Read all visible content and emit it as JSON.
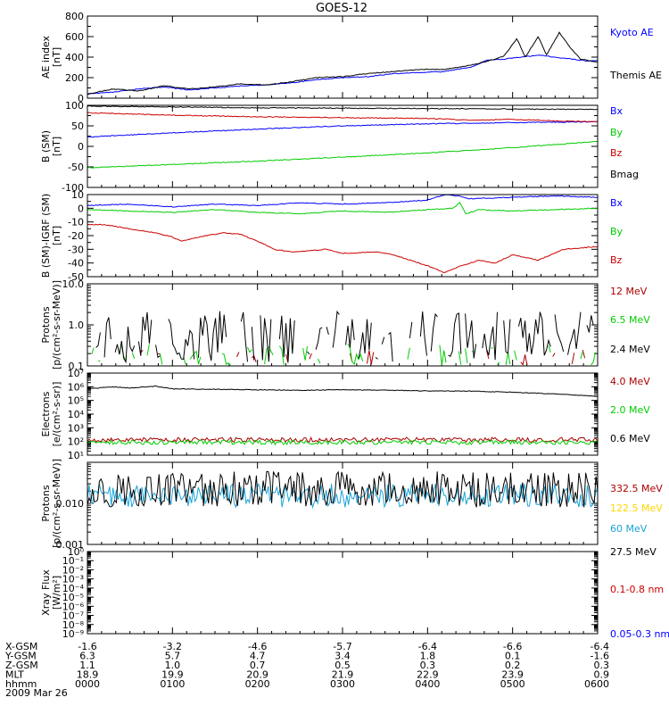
{
  "title": "GOES-12",
  "panels": [
    {
      "id": "ae",
      "ylabel": [
        "AE index",
        "[nT]"
      ],
      "scale": "linear",
      "ylim": [
        0,
        800
      ],
      "ticks": [
        {
          "v": 0,
          "l": "0"
        },
        {
          "v": 200,
          "l": "200"
        },
        {
          "v": 400,
          "l": "400"
        },
        {
          "v": 600,
          "l": "600"
        },
        {
          "v": 800,
          "l": "800"
        }
      ],
      "minor": [
        100,
        300,
        500,
        700
      ],
      "legend": [
        {
          "text": "Kyoto AE",
          "color": "#0000ff"
        },
        {
          "text": "Themis AE",
          "color": "#000000"
        }
      ],
      "series": [
        {
          "name": "Kyoto AE",
          "color": "#0000ff",
          "x": [
            0,
            0.3,
            0.6,
            0.9,
            1.2,
            1.5,
            1.8,
            2.1,
            2.4,
            2.7,
            3.0,
            3.3,
            3.6,
            3.9,
            4.2,
            4.5,
            4.7,
            4.9,
            5.1,
            5.3,
            5.5,
            5.7,
            5.9,
            6.0
          ],
          "y": [
            40,
            60,
            90,
            110,
            80,
            100,
            120,
            130,
            150,
            180,
            200,
            210,
            240,
            250,
            260,
            300,
            370,
            380,
            400,
            420,
            400,
            380,
            360,
            370
          ]
        },
        {
          "name": "Themis AE",
          "color": "#000000",
          "x": [
            0,
            0.3,
            0.6,
            0.9,
            1.2,
            1.5,
            1.8,
            2.1,
            2.4,
            2.7,
            3.0,
            3.3,
            3.6,
            3.9,
            4.2,
            4.5,
            4.7,
            4.9,
            5.05,
            5.15,
            5.3,
            5.4,
            5.55,
            5.7,
            5.8,
            6.0
          ],
          "y": [
            40,
            90,
            70,
            120,
            90,
            110,
            140,
            130,
            160,
            200,
            210,
            240,
            260,
            280,
            280,
            320,
            360,
            410,
            580,
            400,
            600,
            420,
            640,
            470,
            380,
            350
          ]
        }
      ]
    },
    {
      "id": "b",
      "ylabel": [
        "B (SM)",
        "[nT]"
      ],
      "scale": "linear",
      "ylim": [
        -100,
        100
      ],
      "ticks": [
        {
          "v": -100,
          "l": "-100"
        },
        {
          "v": -50,
          "l": "-50"
        },
        {
          "v": 0,
          "l": "0"
        },
        {
          "v": 50,
          "l": "50"
        },
        {
          "v": 100,
          "l": "100"
        }
      ],
      "minor": [
        -75,
        -25,
        25,
        75
      ],
      "legend": [
        {
          "text": "Bx",
          "color": "#0000ff"
        },
        {
          "text": "By",
          "color": "#00cc00"
        },
        {
          "text": "Bz",
          "color": "#cc0000"
        },
        {
          "text": "Bmag",
          "color": "#000000"
        }
      ],
      "series": [
        {
          "name": "Bx",
          "color": "#0000ff",
          "x": [
            0,
            1,
            2,
            3,
            4,
            5,
            6
          ],
          "y": [
            23,
            33,
            42,
            50,
            55,
            58,
            60
          ]
        },
        {
          "name": "By",
          "color": "#00cc00",
          "x": [
            0,
            1,
            2,
            3,
            4,
            5,
            6
          ],
          "y": [
            -52,
            -44,
            -36,
            -26,
            -16,
            -3,
            12
          ]
        },
        {
          "name": "Bz",
          "color": "#cc0000",
          "x": [
            0,
            1,
            2,
            3,
            4,
            4.5,
            5,
            5.5,
            6
          ],
          "y": [
            82,
            76,
            72,
            70,
            68,
            64,
            66,
            62,
            60
          ]
        },
        {
          "name": "Bmag",
          "color": "#000000",
          "x": [
            0,
            1,
            2,
            3,
            4,
            5,
            6
          ],
          "y": [
            98,
            96,
            94,
            93,
            92,
            91,
            90
          ]
        }
      ]
    },
    {
      "id": "bd",
      "ylabel": [
        "B (SM)-IGRF (SM)",
        "[nT]"
      ],
      "scale": "linear",
      "ylim": [
        -50,
        10
      ],
      "ticks": [
        {
          "v": -50,
          "l": "-50"
        },
        {
          "v": -40,
          "l": "-40"
        },
        {
          "v": -30,
          "l": "-30"
        },
        {
          "v": -20,
          "l": "-20"
        },
        {
          "v": -10,
          "l": "-10"
        },
        {
          "v": 0,
          "l": "0"
        },
        {
          "v": 10,
          "l": "10"
        }
      ],
      "minor": [
        -45,
        -35,
        -25,
        -15,
        -5,
        5
      ],
      "legend": [
        {
          "text": "Bx",
          "color": "#0000ff"
        },
        {
          "text": "By",
          "color": "#00cc00"
        },
        {
          "text": "Bz",
          "color": "#cc0000"
        }
      ],
      "series": [
        {
          "name": "Bx",
          "color": "#0000ff",
          "x": [
            0,
            0.5,
            1,
            1.5,
            2,
            2.5,
            3,
            3.5,
            4,
            4.2,
            4.35,
            4.5,
            5,
            5.5,
            6
          ],
          "y": [
            2,
            3,
            1,
            3,
            2,
            4,
            3,
            4,
            6,
            10,
            9,
            7,
            8,
            9,
            8
          ]
        },
        {
          "name": "By",
          "color": "#00cc00",
          "x": [
            0,
            0.5,
            1,
            1.5,
            2,
            2.5,
            3,
            3.5,
            4,
            4.3,
            4.38,
            4.45,
            4.6,
            5,
            5.5,
            6
          ],
          "y": [
            -1,
            -2,
            -3,
            -1,
            -3,
            -4,
            -2,
            -3,
            -1,
            0,
            4,
            -4,
            -1,
            -2,
            -1,
            0
          ]
        },
        {
          "name": "Bz",
          "color": "#cc0000",
          "x": [
            0,
            0.2,
            0.5,
            0.8,
            1.0,
            1.1,
            1.4,
            1.6,
            1.8,
            2.0,
            2.2,
            2.4,
            2.8,
            3.0,
            3.4,
            3.6,
            3.8,
            4.0,
            4.2,
            4.4,
            4.6,
            4.8,
            5.0,
            5.3,
            5.6,
            6.0
          ],
          "y": [
            -12,
            -12,
            -15,
            -18,
            -21,
            -24,
            -20,
            -18,
            -19,
            -24,
            -30,
            -32,
            -30,
            -33,
            -32,
            -34,
            -38,
            -42,
            -47,
            -42,
            -38,
            -40,
            -34,
            -38,
            -30,
            -28
          ]
        }
      ]
    },
    {
      "id": "prot1",
      "ylabel": [
        "Protons",
        "[p/(cm²-s-sr-MeV)]"
      ],
      "scale": "log",
      "ylim": [
        0.1,
        10
      ],
      "ticks": [
        {
          "v": 0.1,
          "l": "0.1"
        },
        {
          "v": 1,
          "l": "1.0"
        },
        {
          "v": 10,
          "l": "10.0"
        }
      ],
      "legend": [
        {
          "text": "12 MeV",
          "color": "#aa0000"
        },
        {
          "text": "6.5 MeV",
          "color": "#00cc00"
        },
        {
          "text": "2.4 MeV",
          "color": "#000000"
        }
      ],
      "series": [
        {
          "name": "12 MeV",
          "color": "#aa0000",
          "noise": {
            "lo": 0.1,
            "hi": 0.25,
            "gapProb": 0.7,
            "n": 240,
            "seed": 11
          }
        },
        {
          "name": "6.5 MeV",
          "color": "#00cc00",
          "noise": {
            "lo": 0.1,
            "hi": 0.35,
            "gapProb": 0.5,
            "n": 240,
            "seed": 23
          }
        },
        {
          "name": "2.4 MeV",
          "color": "#000000",
          "noise": {
            "lo": 0.12,
            "hi": 2.2,
            "gapProb": 0.25,
            "n": 240,
            "seed": 37
          }
        }
      ]
    },
    {
      "id": "elec",
      "ylabel": [
        "Electrons",
        "[e/(cm²-s-sr)]"
      ],
      "scale": "log",
      "ylim": [
        10,
        10000000
      ],
      "ticks": [
        {
          "v": 10,
          "l": "10¹"
        },
        {
          "v": 100,
          "l": "10²"
        },
        {
          "v": 1000,
          "l": "10³"
        },
        {
          "v": 10000,
          "l": "10⁴"
        },
        {
          "v": 100000,
          "l": "10⁵"
        },
        {
          "v": 1000000,
          "l": "10⁶"
        },
        {
          "v": 10000000,
          "l": "10⁷"
        }
      ],
      "legend": [
        {
          "text": "4.0 MeV",
          "color": "#aa0000"
        },
        {
          "text": "2.0 MeV",
          "color": "#00cc00"
        },
        {
          "text": "0.6 MeV",
          "color": "#000000"
        }
      ],
      "series": [
        {
          "name": "0.6 MeV",
          "color": "#000000",
          "x": [
            0,
            0.3,
            0.5,
            0.8,
            1.0,
            1.5,
            2.0,
            2.5,
            3.0,
            3.5,
            4.0,
            4.5,
            5.0,
            5.5,
            6.0
          ],
          "y": [
            700000,
            1000000,
            800000,
            1100000,
            700000,
            650000,
            600000,
            550000,
            600000,
            550000,
            500000,
            480000,
            400000,
            300000,
            200000
          ]
        },
        {
          "name": "4.0 MeV",
          "color": "#aa0000",
          "noise": {
            "lo": 90,
            "hi": 200,
            "gapProb": 0,
            "n": 300,
            "seed": 53
          }
        },
        {
          "name": "2.0 MeV",
          "color": "#00cc00",
          "noise": {
            "lo": 60,
            "hi": 130,
            "gapProb": 0,
            "n": 300,
            "seed": 71
          }
        }
      ]
    },
    {
      "id": "prot2",
      "ylabel": [
        "Protons",
        "[p/(cm²-s-sr-MeV)]"
      ],
      "scale": "log",
      "ylim": [
        0.001,
        0.1
      ],
      "ticks": [
        {
          "v": 0.001,
          "l": "0.001"
        },
        {
          "v": 0.01,
          "l": "0.010"
        }
      ],
      "legend": [
        {
          "text": "332.5 MeV",
          "color": "#aa0000"
        },
        {
          "text": "122.5 MeV",
          "color": "#ffd700"
        },
        {
          "text": "60 MeV",
          "color": "#1aa3d9"
        },
        {
          "text": "27.5 MeV",
          "color": "#000000"
        }
      ],
      "series": [
        {
          "name": "60 MeV",
          "color": "#1aa3d9",
          "noise": {
            "lo": 0.008,
            "hi": 0.03,
            "gapProb": 0,
            "n": 300,
            "seed": 89
          }
        },
        {
          "name": "27.5 MeV",
          "color": "#000000",
          "noise": {
            "lo": 0.008,
            "hi": 0.06,
            "gapProb": 0,
            "n": 300,
            "seed": 97
          }
        }
      ]
    },
    {
      "id": "xray",
      "ylabel": [
        "Xray Flux",
        "[W/m²]"
      ],
      "scale": "log",
      "ylim": [
        1e-09,
        1
      ],
      "ticks": [
        {
          "v": 1e-09,
          "l": "10⁻⁹"
        },
        {
          "v": 1e-08,
          "l": "10⁻⁸"
        },
        {
          "v": 1e-07,
          "l": "10⁻⁷"
        },
        {
          "v": 1e-06,
          "l": "10⁻⁶"
        },
        {
          "v": 1e-05,
          "l": "10⁻⁵"
        },
        {
          "v": 0.0001,
          "l": "10⁻⁴"
        },
        {
          "v": 0.001,
          "l": "10⁻³"
        },
        {
          "v": 0.01,
          "l": "10⁻²"
        },
        {
          "v": 0.1,
          "l": "10⁻¹"
        },
        {
          "v": 1,
          "l": "10⁰"
        }
      ],
      "legend": [
        {
          "text": "0.1-0.8 nm",
          "color": "#cc0000"
        },
        {
          "text": "0.05-0.3 nm",
          "color": "#0000ff"
        }
      ],
      "series": []
    }
  ],
  "xaxis": {
    "xlim": [
      0,
      6
    ],
    "tick_hours": [
      0,
      1,
      2,
      3,
      4,
      5,
      6
    ],
    "rows": [
      {
        "label": "X-GSM",
        "values": [
          "-1.6",
          "-3.2",
          "-4.6",
          "-5.7",
          "-6.4",
          "-6.6",
          "-6.4"
        ]
      },
      {
        "label": "Y-GSM",
        "values": [
          "6.3",
          "5.7",
          "4.7",
          "3.4",
          "1.8",
          "0.1",
          "-1.6"
        ]
      },
      {
        "label": "Z-GSM",
        "values": [
          "1.1",
          "1.0",
          "0.7",
          "0.5",
          "0.3",
          "0.2",
          "0.3"
        ]
      },
      {
        "label": "MLT",
        "values": [
          "18.9",
          "19.9",
          "20.9",
          "21.9",
          "22.9",
          "23.9",
          "0.9"
        ]
      },
      {
        "label": "hhmm",
        "values": [
          "0000",
          "0100",
          "0200",
          "0300",
          "0400",
          "0500",
          "0600"
        ]
      }
    ],
    "date": "2009 Mar 26"
  }
}
